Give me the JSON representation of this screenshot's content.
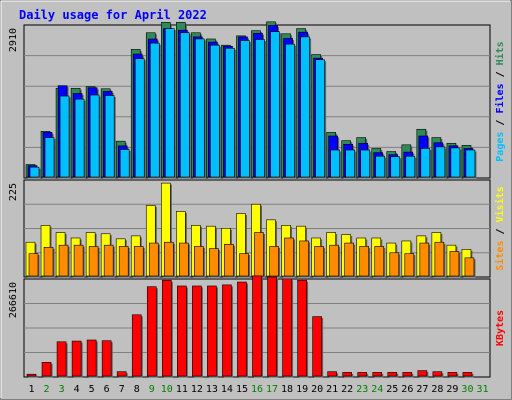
{
  "chart_data": [
    {
      "type": "bar",
      "title": "Daily usage for April 2022",
      "panel": "pages-files-hits",
      "categories": [
        "1",
        "2",
        "3",
        "4",
        "5",
        "6",
        "7",
        "8",
        "9",
        "10",
        "11",
        "12",
        "13",
        "14",
        "15",
        "16",
        "17",
        "18",
        "19",
        "20",
        "21",
        "22",
        "23",
        "24",
        "25",
        "26",
        "27",
        "28",
        "29",
        "30",
        "31"
      ],
      "ylabel_parts": [
        "Pages",
        "Files",
        "Hits"
      ],
      "ymax_label": "2910",
      "ylim": [
        0,
        2910
      ],
      "series": [
        {
          "name": "Hits",
          "color": "#2e8b57",
          "values": [
            240,
            880,
            1710,
            1710,
            1740,
            1700,
            690,
            2460,
            2780,
            2980,
            2980,
            2780,
            2660,
            2540,
            2720,
            2820,
            2990,
            2760,
            2860,
            2360,
            860,
            700,
            760,
            550,
            490,
            620,
            920,
            760,
            650,
            610,
            0
          ]
        },
        {
          "name": "Files",
          "color": "#0000ff",
          "values": [
            220,
            860,
            1760,
            1610,
            1720,
            1650,
            600,
            2370,
            2660,
            2860,
            2830,
            2700,
            2600,
            2520,
            2700,
            2770,
            2920,
            2670,
            2790,
            2290,
            790,
            630,
            650,
            470,
            430,
            480,
            790,
            660,
            600,
            550,
            0
          ]
        },
        {
          "name": "Pages",
          "color": "#00bfff",
          "values": [
            190,
            760,
            1560,
            1500,
            1580,
            1570,
            530,
            2280,
            2580,
            2860,
            2780,
            2660,
            2540,
            2480,
            2630,
            2650,
            2800,
            2560,
            2700,
            2260,
            520,
            520,
            520,
            400,
            390,
            400,
            550,
            580,
            560,
            520,
            0
          ]
        }
      ]
    },
    {
      "type": "bar",
      "panel": "visits-sites",
      "categories": [
        "1",
        "2",
        "3",
        "4",
        "5",
        "6",
        "7",
        "8",
        "9",
        "10",
        "11",
        "12",
        "13",
        "14",
        "15",
        "16",
        "17",
        "18",
        "19",
        "20",
        "21",
        "22",
        "23",
        "24",
        "25",
        "26",
        "27",
        "28",
        "29",
        "30",
        "31"
      ],
      "ylabel_parts": [
        "Sites",
        "Visits"
      ],
      "ymax_label": "225",
      "ylim": [
        0,
        225
      ],
      "series": [
        {
          "name": "Visits",
          "color": "#ffff00",
          "values": [
            80,
            120,
            103,
            90,
            103,
            100,
            88,
            95,
            167,
            220,
            153,
            120,
            118,
            113,
            148,
            170,
            133,
            120,
            118,
            90,
            103,
            98,
            90,
            90,
            78,
            83,
            95,
            103,
            73,
            63,
            0
          ]
        },
        {
          "name": "Sites",
          "color": "#ff8c00",
          "values": [
            53,
            68,
            73,
            73,
            70,
            73,
            70,
            70,
            78,
            80,
            78,
            70,
            65,
            75,
            53,
            103,
            70,
            90,
            83,
            70,
            73,
            78,
            70,
            70,
            55,
            53,
            78,
            80,
            58,
            43,
            0
          ]
        }
      ]
    },
    {
      "type": "bar",
      "panel": "kbytes",
      "categories": [
        "1",
        "2",
        "3",
        "4",
        "5",
        "6",
        "7",
        "8",
        "9",
        "10",
        "11",
        "12",
        "13",
        "14",
        "15",
        "16",
        "17",
        "18",
        "19",
        "20",
        "21",
        "22",
        "23",
        "24",
        "25",
        "26",
        "27",
        "28",
        "29",
        "30",
        "31"
      ],
      "ylabel": "KBytes",
      "ymax_label": "266610",
      "ylim": [
        0,
        266610
      ],
      "series": [
        {
          "name": "KBytes",
          "color": "#ff0000",
          "values": [
            5000,
            38000,
            95000,
            97000,
            100000,
            98000,
            12000,
            170000,
            248000,
            266000,
            250000,
            250000,
            250000,
            253000,
            261000,
            278000,
            275000,
            270000,
            266000,
            165000,
            12000,
            10000,
            10000,
            10000,
            10000,
            10000,
            15000,
            12000,
            10000,
            10000,
            0
          ]
        }
      ]
    }
  ],
  "colors": {
    "background": "#ffffff",
    "frame": "#c0c0c0",
    "grid": "#808080",
    "title": "#0000ff",
    "weekend_label": "#008000",
    "weekday_label": "#000000"
  },
  "weekend_days": [
    "2",
    "3",
    "9",
    "10",
    "16",
    "17",
    "23",
    "24",
    "30",
    "31"
  ]
}
